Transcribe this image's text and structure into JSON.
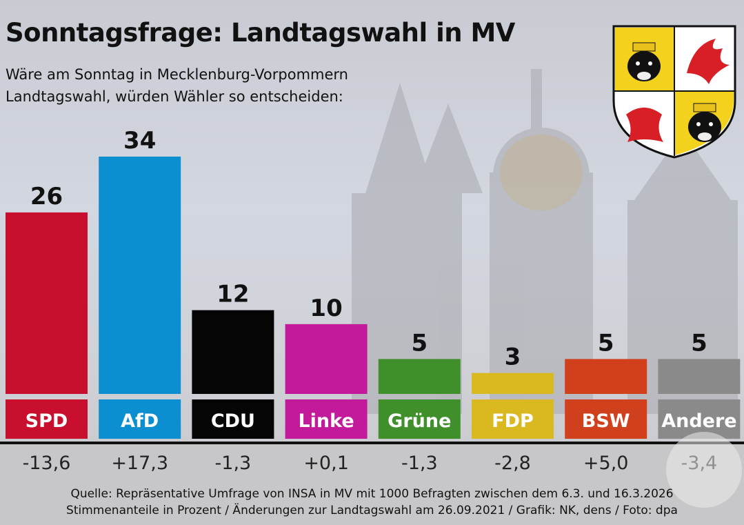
{
  "title": "Sonntagsfrage: Landtagswahl in MV",
  "subtitle_lines": [
    "Wäre am Sonntag in Mecklenburg-Vorpommern",
    "Landtagswahl, würden Wähler so entscheiden:"
  ],
  "source_lines": [
    "Quelle: Repräsentative Umfrage von INSA in MV mit 1000 Befragten zwischen dem 6.3. und 16.3.2026",
    "Stimmenanteile in Prozent / Änderungen zur Landtagswahl am 26.09.2021 / Grafik: NK, dens / Foto: dpa"
  ],
  "chart_data": {
    "type": "bar",
    "title": "Sonntagsfrage: Landtagswahl in MV",
    "categories": [
      "SPD",
      "AfD",
      "CDU",
      "Linke",
      "Grüne",
      "FDP",
      "BSW",
      "Andere"
    ],
    "values": [
      26,
      34,
      12,
      10,
      5,
      3,
      5,
      5
    ],
    "value_labels": [
      "26",
      "34",
      "12",
      "10",
      "5",
      "3",
      "5",
      "5"
    ],
    "changes": [
      "-13,6",
      "+17,3",
      "-1,3",
      "+0,1",
      "-1,3",
      "-2,8",
      "+5,0",
      "-3,4"
    ],
    "colors": [
      "#c8102e",
      "#0b8fd1",
      "#050505",
      "#c21a9b",
      "#3f8f2a",
      "#d9b820",
      "#d0401c",
      "#8a8a8a"
    ],
    "ylim": [
      0,
      34
    ],
    "grid": false
  }
}
